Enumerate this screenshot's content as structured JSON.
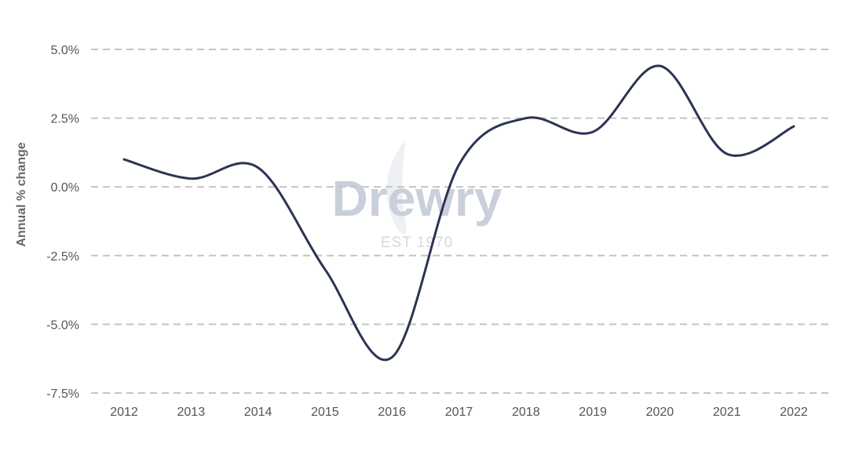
{
  "chart_data": {
    "type": "line",
    "title": "",
    "xlabel": "",
    "ylabel": "Annual % change",
    "x": [
      "2012",
      "2013",
      "2014",
      "2015",
      "2016",
      "2017",
      "2018",
      "2019",
      "2020",
      "2021",
      "2022"
    ],
    "series": [
      {
        "values": [
          1.0,
          0.3,
          0.7,
          -3.0,
          -6.2,
          0.8,
          2.5,
          2.0,
          4.4,
          1.2,
          2.2
        ]
      }
    ],
    "yticks": [
      5.0,
      2.5,
      0.0,
      -2.5,
      -5.0,
      -7.5
    ],
    "ytick_labels": [
      "5.0%",
      "2.5%",
      "0.0%",
      "-2.5%",
      "-5.0%",
      "-7.5%"
    ],
    "ylim": [
      -7.5,
      5.0
    ],
    "grid": "horizontal dashed",
    "legend": "none",
    "line_color": "#2b3452",
    "watermark": {
      "logo": "Drewry",
      "sub": "EST 1970"
    }
  }
}
